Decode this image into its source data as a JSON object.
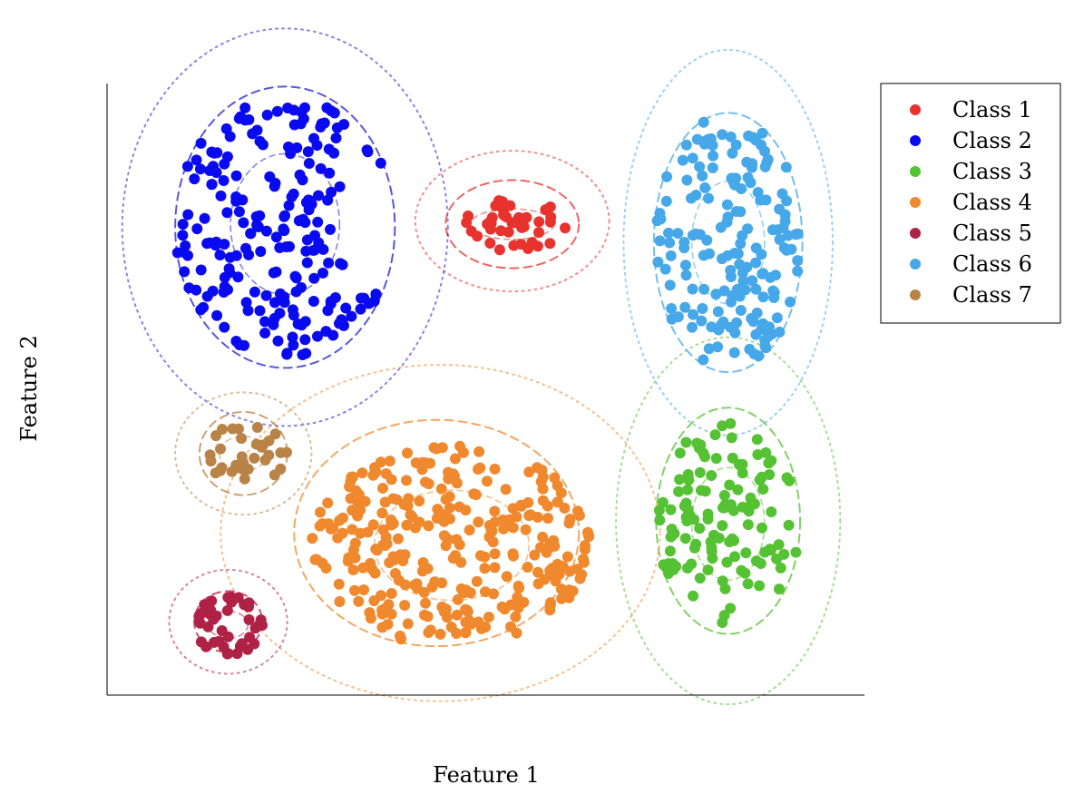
{
  "chart_data": {
    "type": "scatter",
    "title": "",
    "xlabel": "Feature 1",
    "ylabel": "Feature 2",
    "xlim": [
      0,
      10
    ],
    "ylim": [
      0,
      10
    ],
    "grid": false,
    "ticks": false,
    "legend": {
      "placement": "right-top",
      "entries": [
        "Class 1",
        "Class 2",
        "Class 3",
        "Class 4",
        "Class 5",
        "Class 6",
        "Class 7"
      ]
    },
    "series": [
      {
        "name": "Class 1",
        "color": "#e8322d",
        "center": [
          5.35,
          7.7
        ],
        "spread": [
          0.72,
          0.44
        ],
        "n": 45,
        "seed": 11
      },
      {
        "name": "Class 2",
        "color": "#0a0af0",
        "center": [
          2.35,
          7.65
        ],
        "spread": [
          1.45,
          2.15
        ],
        "n": 210,
        "seed": 23,
        "cut_right": true
      },
      {
        "name": "Class 3",
        "color": "#55c234",
        "center": [
          8.2,
          2.8
        ],
        "spread": [
          0.95,
          1.65
        ],
        "n": 120,
        "seed": 37
      },
      {
        "name": "Class 4",
        "color": "#f0892e",
        "center": [
          4.55,
          2.45
        ],
        "spread": [
          1.85,
          1.65
        ],
        "n": 300,
        "seed": 41
      },
      {
        "name": "Class 5",
        "color": "#b02146",
        "center": [
          1.6,
          1.15
        ],
        "spread": [
          0.45,
          0.5
        ],
        "n": 40,
        "seed": 53
      },
      {
        "name": "Class 6",
        "color": "#46a8e8",
        "center": [
          8.2,
          7.4
        ],
        "spread": [
          0.95,
          2.1
        ],
        "n": 170,
        "seed": 67
      },
      {
        "name": "Class 7",
        "color": "#b98348",
        "center": [
          1.8,
          3.95
        ],
        "spread": [
          0.58,
          0.5
        ],
        "n": 35,
        "seed": 79
      }
    ],
    "ellipses": [
      {
        "series": "Class 1",
        "color": "#e8322d",
        "inner": [
          5.35,
          7.7,
          0.55,
          0.25
        ],
        "mid": [
          5.35,
          7.7,
          0.88,
          0.72
        ],
        "outer": [
          5.35,
          7.75,
          1.28,
          1.15
        ]
      },
      {
        "series": "Class 2",
        "color": "#1f1fd6",
        "inner": [
          2.35,
          7.7,
          0.72,
          1.15
        ],
        "mid": [
          2.35,
          7.65,
          1.45,
          2.3
        ],
        "outer": [
          2.35,
          7.65,
          2.15,
          3.25
        ]
      },
      {
        "series": "Class 3",
        "color": "#55c234",
        "inner": [
          8.2,
          2.8,
          0.48,
          0.92
        ],
        "mid": [
          8.2,
          2.85,
          0.95,
          1.85
        ],
        "outer": [
          8.2,
          2.85,
          1.48,
          3.0
        ]
      },
      {
        "series": "Class 4",
        "color": "#f0892e",
        "inner": [
          4.55,
          2.45,
          1.02,
          0.9
        ],
        "mid": [
          4.35,
          2.65,
          1.88,
          1.85
        ],
        "outer": [
          4.4,
          2.65,
          2.9,
          2.75
        ]
      },
      {
        "series": "Class 5",
        "color": "#b02146",
        "inner": [
          1.6,
          1.15,
          0.26,
          0.22
        ],
        "mid": [
          1.6,
          1.2,
          0.45,
          0.5
        ],
        "outer": [
          1.6,
          1.2,
          0.78,
          0.85
        ]
      },
      {
        "series": "Class 6",
        "color": "#46a8e8",
        "inner": [
          8.2,
          7.4,
          0.48,
          1.0
        ],
        "mid": [
          8.2,
          7.4,
          0.98,
          2.12
        ],
        "outer": [
          8.2,
          7.4,
          1.38,
          3.15
        ]
      },
      {
        "series": "Class 7",
        "color": "#b98348",
        "inner": [
          1.8,
          3.95,
          0.32,
          0.28
        ],
        "mid": [
          1.8,
          3.95,
          0.58,
          0.68
        ],
        "outer": [
          1.8,
          3.95,
          0.9,
          1.0
        ]
      }
    ]
  }
}
